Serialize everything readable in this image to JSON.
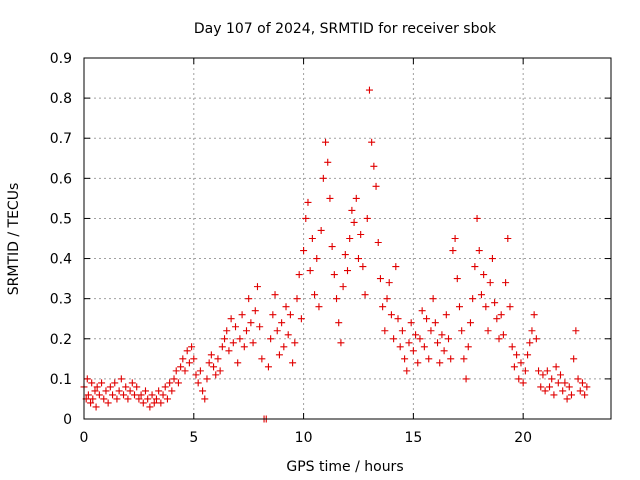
{
  "chart_data": {
    "type": "scatter",
    "title": "Day 107 of 2024, SRMTID for receiver sbok",
    "xlabel": "GPS time / hours",
    "ylabel": "SRMTID / TECUs",
    "xlim": [
      0,
      24
    ],
    "ylim": [
      0,
      0.9
    ],
    "x_ticks": [
      0,
      5,
      10,
      15,
      20
    ],
    "x_tick_labels": [
      "0",
      "5",
      "10",
      "15",
      "20"
    ],
    "y_ticks": [
      0,
      0.1,
      0.2,
      0.3,
      0.4,
      0.5,
      0.6,
      0.7,
      0.8,
      0.9
    ],
    "y_tick_labels": [
      "0",
      "0.1",
      "0.2",
      "0.3",
      "0.4",
      "0.5",
      "0.6",
      "0.7",
      "0.8",
      "0.9"
    ],
    "grid": true,
    "marker": "+",
    "series": [
      {
        "name": "SRMTID",
        "color": "#e00000",
        "points": [
          [
            0.0,
            0.08
          ],
          [
            0.1,
            0.05
          ],
          [
            0.15,
            0.1
          ],
          [
            0.2,
            0.06
          ],
          [
            0.3,
            0.04
          ],
          [
            0.35,
            0.09
          ],
          [
            0.4,
            0.05
          ],
          [
            0.5,
            0.07
          ],
          [
            0.55,
            0.03
          ],
          [
            0.6,
            0.08
          ],
          [
            0.7,
            0.06
          ],
          [
            0.8,
            0.09
          ],
          [
            0.9,
            0.05
          ],
          [
            1.0,
            0.07
          ],
          [
            1.1,
            0.04
          ],
          [
            1.2,
            0.08
          ],
          [
            1.3,
            0.06
          ],
          [
            1.4,
            0.09
          ],
          [
            1.5,
            0.05
          ],
          [
            1.6,
            0.07
          ],
          [
            1.7,
            0.1
          ],
          [
            1.8,
            0.06
          ],
          [
            1.9,
            0.08
          ],
          [
            2.0,
            0.05
          ],
          [
            2.1,
            0.07
          ],
          [
            2.2,
            0.09
          ],
          [
            2.3,
            0.06
          ],
          [
            2.4,
            0.08
          ],
          [
            2.5,
            0.05
          ],
          [
            2.6,
            0.06
          ],
          [
            2.7,
            0.04
          ],
          [
            2.8,
            0.07
          ],
          [
            2.9,
            0.05
          ],
          [
            3.0,
            0.03
          ],
          [
            3.1,
            0.06
          ],
          [
            3.2,
            0.04
          ],
          [
            3.3,
            0.05
          ],
          [
            3.4,
            0.07
          ],
          [
            3.5,
            0.04
          ],
          [
            3.6,
            0.06
          ],
          [
            3.7,
            0.08
          ],
          [
            3.8,
            0.05
          ],
          [
            3.9,
            0.09
          ],
          [
            4.0,
            0.07
          ],
          [
            4.1,
            0.1
          ],
          [
            4.2,
            0.12
          ],
          [
            4.3,
            0.09
          ],
          [
            4.4,
            0.13
          ],
          [
            4.5,
            0.15
          ],
          [
            4.6,
            0.12
          ],
          [
            4.7,
            0.17
          ],
          [
            4.8,
            0.14
          ],
          [
            4.9,
            0.18
          ],
          [
            5.0,
            0.15
          ],
          [
            5.1,
            0.11
          ],
          [
            5.2,
            0.09
          ],
          [
            5.3,
            0.12
          ],
          [
            5.4,
            0.07
          ],
          [
            5.5,
            0.05
          ],
          [
            5.6,
            0.1
          ],
          [
            5.7,
            0.14
          ],
          [
            5.8,
            0.16
          ],
          [
            5.9,
            0.13
          ],
          [
            6.0,
            0.11
          ],
          [
            6.1,
            0.15
          ],
          [
            6.2,
            0.12
          ],
          [
            6.3,
            0.18
          ],
          [
            6.4,
            0.2
          ],
          [
            6.5,
            0.22
          ],
          [
            6.6,
            0.17
          ],
          [
            6.7,
            0.25
          ],
          [
            6.8,
            0.19
          ],
          [
            6.9,
            0.23
          ],
          [
            7.0,
            0.14
          ],
          [
            7.1,
            0.2
          ],
          [
            7.2,
            0.26
          ],
          [
            7.3,
            0.18
          ],
          [
            7.4,
            0.22
          ],
          [
            7.5,
            0.3
          ],
          [
            7.6,
            0.24
          ],
          [
            7.7,
            0.19
          ],
          [
            7.8,
            0.27
          ],
          [
            7.9,
            0.33
          ],
          [
            8.0,
            0.23
          ],
          [
            8.1,
            0.15
          ],
          [
            8.2,
            0.0
          ],
          [
            8.3,
            0.0
          ],
          [
            8.4,
            0.13
          ],
          [
            8.5,
            0.2
          ],
          [
            8.6,
            0.26
          ],
          [
            8.7,
            0.31
          ],
          [
            8.8,
            0.22
          ],
          [
            8.9,
            0.16
          ],
          [
            9.0,
            0.24
          ],
          [
            9.1,
            0.18
          ],
          [
            9.2,
            0.28
          ],
          [
            9.3,
            0.21
          ],
          [
            9.4,
            0.26
          ],
          [
            9.5,
            0.14
          ],
          [
            9.6,
            0.19
          ],
          [
            9.7,
            0.3
          ],
          [
            9.8,
            0.36
          ],
          [
            9.9,
            0.25
          ],
          [
            10.0,
            0.42
          ],
          [
            10.1,
            0.5
          ],
          [
            10.2,
            0.54
          ],
          [
            10.3,
            0.37
          ],
          [
            10.4,
            0.45
          ],
          [
            10.5,
            0.31
          ],
          [
            10.6,
            0.4
          ],
          [
            10.7,
            0.28
          ],
          [
            10.8,
            0.47
          ],
          [
            10.9,
            0.6
          ],
          [
            11.0,
            0.69
          ],
          [
            11.1,
            0.64
          ],
          [
            11.2,
            0.55
          ],
          [
            11.3,
            0.43
          ],
          [
            11.4,
            0.36
          ],
          [
            11.5,
            0.3
          ],
          [
            11.6,
            0.24
          ],
          [
            11.7,
            0.19
          ],
          [
            11.8,
            0.33
          ],
          [
            11.9,
            0.41
          ],
          [
            12.0,
            0.37
          ],
          [
            12.1,
            0.45
          ],
          [
            12.2,
            0.52
          ],
          [
            12.3,
            0.49
          ],
          [
            12.4,
            0.55
          ],
          [
            12.5,
            0.4
          ],
          [
            12.6,
            0.46
          ],
          [
            12.7,
            0.38
          ],
          [
            12.8,
            0.31
          ],
          [
            12.9,
            0.5
          ],
          [
            13.0,
            0.82
          ],
          [
            13.1,
            0.69
          ],
          [
            13.2,
            0.63
          ],
          [
            13.3,
            0.58
          ],
          [
            13.4,
            0.44
          ],
          [
            13.5,
            0.35
          ],
          [
            13.6,
            0.28
          ],
          [
            13.7,
            0.22
          ],
          [
            13.8,
            0.3
          ],
          [
            13.9,
            0.34
          ],
          [
            14.0,
            0.26
          ],
          [
            14.1,
            0.2
          ],
          [
            14.2,
            0.38
          ],
          [
            14.3,
            0.25
          ],
          [
            14.4,
            0.18
          ],
          [
            14.5,
            0.22
          ],
          [
            14.6,
            0.15
          ],
          [
            14.7,
            0.12
          ],
          [
            14.8,
            0.19
          ],
          [
            14.9,
            0.24
          ],
          [
            15.0,
            0.17
          ],
          [
            15.1,
            0.21
          ],
          [
            15.2,
            0.14
          ],
          [
            15.3,
            0.2
          ],
          [
            15.4,
            0.27
          ],
          [
            15.5,
            0.18
          ],
          [
            15.6,
            0.25
          ],
          [
            15.7,
            0.15
          ],
          [
            15.8,
            0.22
          ],
          [
            15.9,
            0.3
          ],
          [
            16.0,
            0.24
          ],
          [
            16.1,
            0.19
          ],
          [
            16.2,
            0.14
          ],
          [
            16.3,
            0.21
          ],
          [
            16.4,
            0.17
          ],
          [
            16.5,
            0.26
          ],
          [
            16.6,
            0.2
          ],
          [
            16.7,
            0.15
          ],
          [
            16.8,
            0.42
          ],
          [
            16.9,
            0.45
          ],
          [
            17.0,
            0.35
          ],
          [
            17.1,
            0.28
          ],
          [
            17.2,
            0.22
          ],
          [
            17.3,
            0.15
          ],
          [
            17.4,
            0.1
          ],
          [
            17.5,
            0.18
          ],
          [
            17.6,
            0.24
          ],
          [
            17.7,
            0.3
          ],
          [
            17.8,
            0.38
          ],
          [
            17.9,
            0.5
          ],
          [
            18.0,
            0.42
          ],
          [
            18.1,
            0.31
          ],
          [
            18.2,
            0.36
          ],
          [
            18.3,
            0.28
          ],
          [
            18.4,
            0.22
          ],
          [
            18.5,
            0.34
          ],
          [
            18.6,
            0.4
          ],
          [
            18.7,
            0.29
          ],
          [
            18.8,
            0.25
          ],
          [
            18.9,
            0.2
          ],
          [
            19.0,
            0.26
          ],
          [
            19.1,
            0.21
          ],
          [
            19.2,
            0.34
          ],
          [
            19.3,
            0.45
          ],
          [
            19.4,
            0.28
          ],
          [
            19.5,
            0.18
          ],
          [
            19.6,
            0.13
          ],
          [
            19.7,
            0.16
          ],
          [
            19.8,
            0.1
          ],
          [
            19.9,
            0.14
          ],
          [
            20.0,
            0.09
          ],
          [
            20.1,
            0.12
          ],
          [
            20.2,
            0.16
          ],
          [
            20.3,
            0.19
          ],
          [
            20.4,
            0.22
          ],
          [
            20.5,
            0.26
          ],
          [
            20.6,
            0.2
          ],
          [
            20.7,
            0.12
          ],
          [
            20.8,
            0.08
          ],
          [
            20.9,
            0.11
          ],
          [
            21.0,
            0.07
          ],
          [
            21.1,
            0.12
          ],
          [
            21.2,
            0.08
          ],
          [
            21.3,
            0.1
          ],
          [
            21.4,
            0.06
          ],
          [
            21.5,
            0.13
          ],
          [
            21.6,
            0.09
          ],
          [
            21.7,
            0.11
          ],
          [
            21.8,
            0.07
          ],
          [
            21.9,
            0.09
          ],
          [
            22.0,
            0.05
          ],
          [
            22.1,
            0.08
          ],
          [
            22.2,
            0.06
          ],
          [
            22.3,
            0.15
          ],
          [
            22.4,
            0.22
          ],
          [
            22.5,
            0.1
          ],
          [
            22.6,
            0.07
          ],
          [
            22.7,
            0.09
          ],
          [
            22.8,
            0.06
          ],
          [
            22.9,
            0.08
          ]
        ]
      }
    ]
  }
}
